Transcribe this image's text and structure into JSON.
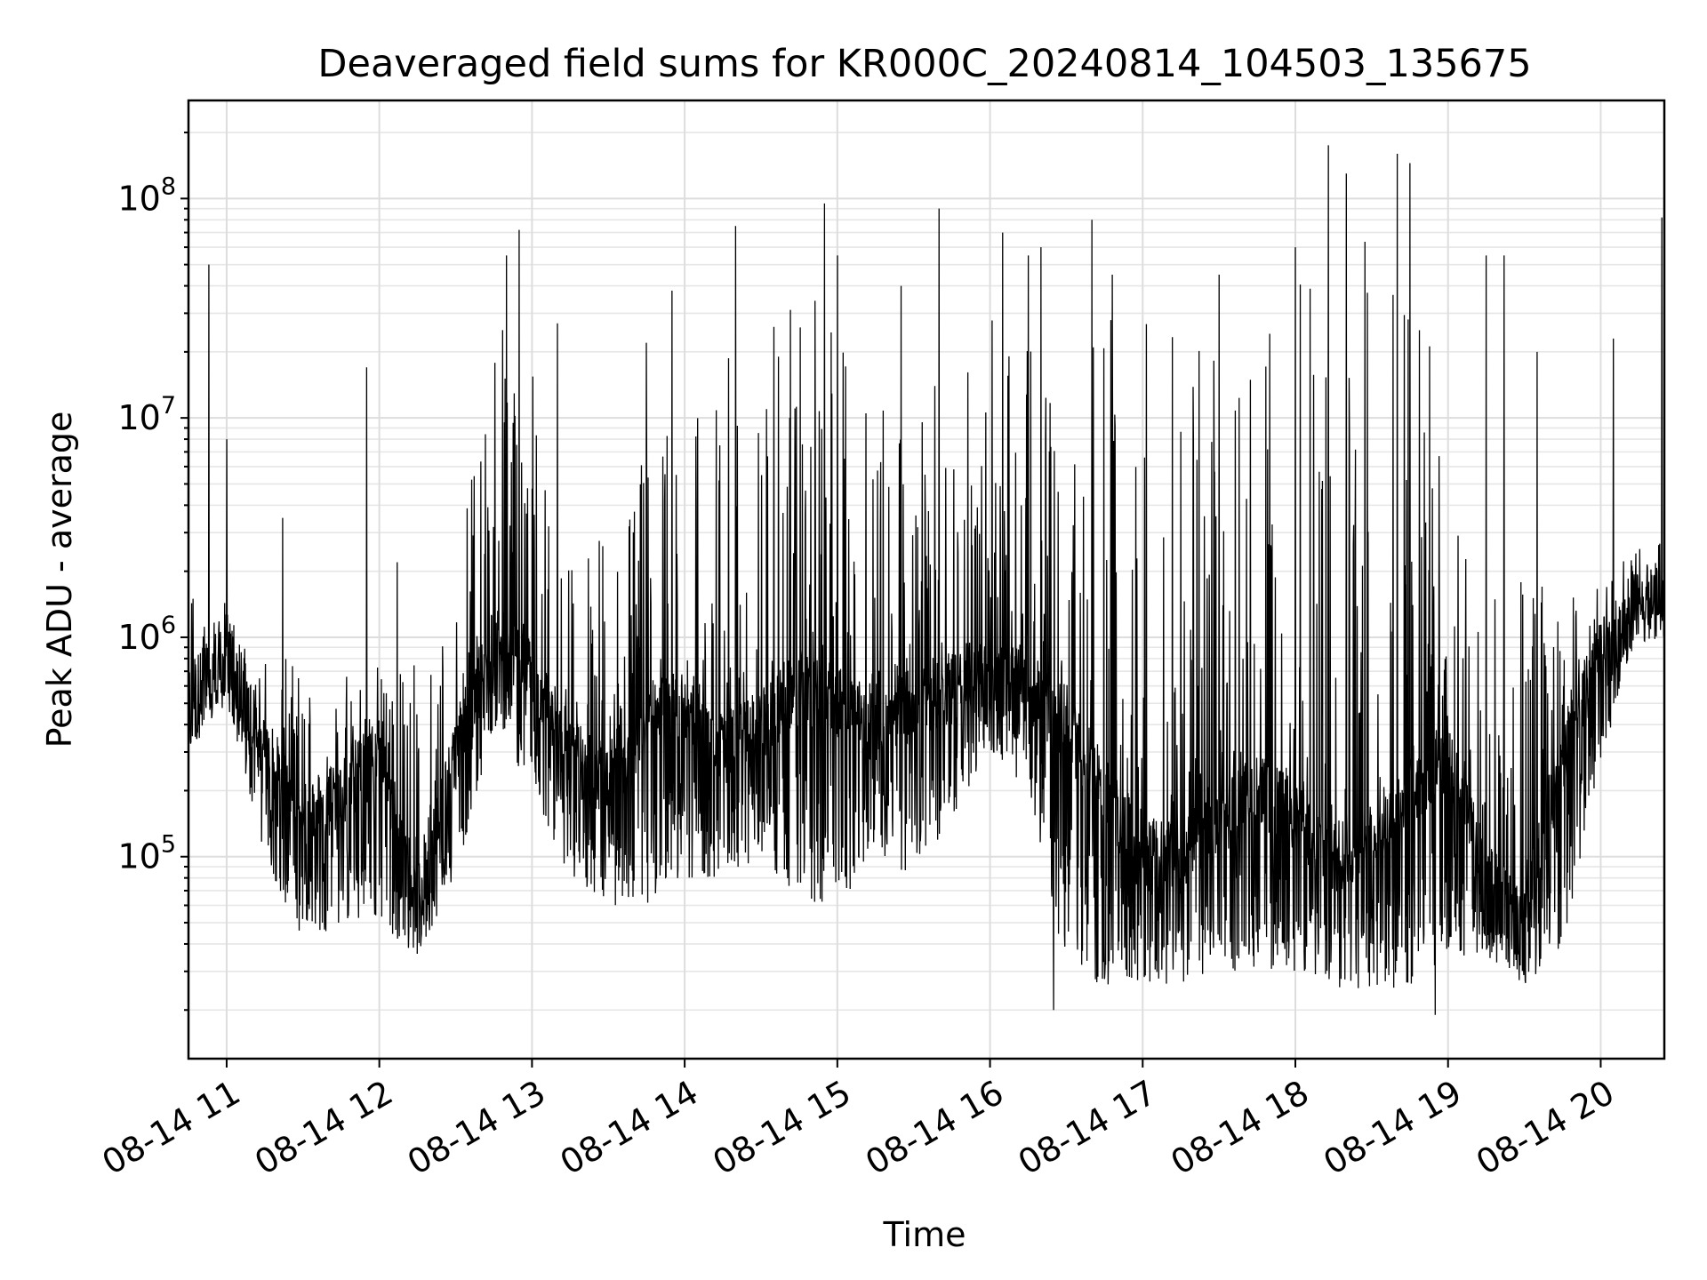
{
  "chart_data": {
    "type": "line",
    "title": "Deaveraged field sums for KR000C_20240814_104503_135675",
    "xlabel": "Time",
    "ylabel": "Peak ADU - average",
    "yscale": "log",
    "xlim": [
      "2024-08-14 10:45",
      "2024-08-14 20:25"
    ],
    "ylim": [
      12000,
      280000000
    ],
    "x_ticks": [
      {
        "value": "2024-08-14 11:00",
        "label": "08-14 11"
      },
      {
        "value": "2024-08-14 12:00",
        "label": "08-14 12"
      },
      {
        "value": "2024-08-14 13:00",
        "label": "08-14 13"
      },
      {
        "value": "2024-08-14 14:00",
        "label": "08-14 14"
      },
      {
        "value": "2024-08-14 15:00",
        "label": "08-14 15"
      },
      {
        "value": "2024-08-14 16:00",
        "label": "08-14 16"
      },
      {
        "value": "2024-08-14 17:00",
        "label": "08-14 17"
      },
      {
        "value": "2024-08-14 18:00",
        "label": "08-14 18"
      },
      {
        "value": "2024-08-14 19:00",
        "label": "08-14 19"
      },
      {
        "value": "2024-08-14 20:00",
        "label": "08-14 20"
      }
    ],
    "y_ticks": [
      {
        "value": 100000,
        "base": "10",
        "exp": "5"
      },
      {
        "value": 1000000,
        "base": "10",
        "exp": "6"
      },
      {
        "value": 10000000,
        "base": "10",
        "exp": "7"
      },
      {
        "value": 100000000,
        "base": "10",
        "exp": "8"
      }
    ],
    "grid": true,
    "series_color": "#000000",
    "series": [
      {
        "x": [
          "2024-08-14 10:45",
          "2024-08-14 11:00",
          "2024-08-14 11:15",
          "2024-08-14 11:30",
          "2024-08-14 11:45",
          "2024-08-14 12:00",
          "2024-08-14 12:15",
          "2024-08-14 12:30",
          "2024-08-14 12:45",
          "2024-08-14 13:00",
          "2024-08-14 13:15",
          "2024-08-14 13:30",
          "2024-08-14 13:45",
          "2024-08-14 14:00",
          "2024-08-14 14:15",
          "2024-08-14 14:30",
          "2024-08-14 14:45",
          "2024-08-14 15:00",
          "2024-08-14 15:15",
          "2024-08-14 15:30",
          "2024-08-14 15:45",
          "2024-08-14 16:00",
          "2024-08-14 16:15",
          "2024-08-14 16:30",
          "2024-08-14 16:45",
          "2024-08-14 17:00",
          "2024-08-14 17:15",
          "2024-08-14 17:30",
          "2024-08-14 17:45",
          "2024-08-14 18:00",
          "2024-08-14 18:15",
          "2024-08-14 18:30",
          "2024-08-14 18:45",
          "2024-08-14 19:00",
          "2024-08-14 19:15",
          "2024-08-14 19:30",
          "2024-08-14 19:45",
          "2024-08-14 20:00",
          "2024-08-14 20:15",
          "2024-08-14 20:25"
        ],
        "base": [
          500000,
          900000,
          300000,
          150000,
          200000,
          300000,
          60000,
          300000,
          1000000,
          700000,
          300000,
          200000,
          400000,
          500000,
          300000,
          400000,
          600000,
          500000,
          400000,
          500000,
          600000,
          700000,
          600000,
          400000,
          200000,
          100000,
          100000,
          150000,
          200000,
          150000,
          100000,
          120000,
          200000,
          300000,
          80000,
          50000,
          300000,
          800000,
          1400000,
          1500000
        ],
        "low": [
          300000,
          500000,
          100000,
          40000,
          50000,
          50000,
          35000,
          80000,
          400000,
          200000,
          80000,
          60000,
          60000,
          80000,
          80000,
          100000,
          60000,
          60000,
          100000,
          80000,
          150000,
          300000,
          200000,
          30000,
          25000,
          25000,
          25000,
          30000,
          30000,
          30000,
          25000,
          25000,
          25000,
          35000,
          35000,
          25000,
          40000,
          250000,
          1200000,
          1200000
        ],
        "high": [
          2000000,
          1500000,
          800000,
          800000,
          700000,
          800000,
          800000,
          1500000,
          40000000,
          20000000,
          2500000,
          3000000,
          8000000,
          15000000,
          20000000,
          15000000,
          40000000,
          30000000,
          15000000,
          12000000,
          18000000,
          30000000,
          25000000,
          50000000,
          50000000,
          35000000,
          25000000,
          20000000,
          20000000,
          40000000,
          80000000,
          90000000,
          35000000,
          15000000,
          1500000,
          2000000,
          1500000,
          2000000,
          2500000,
          3500000
        ],
        "spikes": [
          {
            "x": "2024-08-14 10:53",
            "y": 50000000
          },
          {
            "x": "2024-08-14 11:00",
            "y": 8000000
          },
          {
            "x": "2024-08-14 11:22",
            "y": 3500000
          },
          {
            "x": "2024-08-14 11:55",
            "y": 17000000
          },
          {
            "x": "2024-08-14 12:07",
            "y": 2200000
          },
          {
            "x": "2024-08-14 12:50",
            "y": 55000000
          },
          {
            "x": "2024-08-14 12:55",
            "y": 72000000
          },
          {
            "x": "2024-08-14 13:10",
            "y": 27000000
          },
          {
            "x": "2024-08-14 13:45",
            "y": 22000000
          },
          {
            "x": "2024-08-14 13:55",
            "y": 38000000
          },
          {
            "x": "2024-08-14 14:20",
            "y": 75000000
          },
          {
            "x": "2024-08-14 14:35",
            "y": 26000000
          },
          {
            "x": "2024-08-14 14:55",
            "y": 95000000
          },
          {
            "x": "2024-08-14 15:00",
            "y": 55000000
          },
          {
            "x": "2024-08-14 15:25",
            "y": 40000000
          },
          {
            "x": "2024-08-14 15:40",
            "y": 90000000
          },
          {
            "x": "2024-08-14 16:05",
            "y": 70000000
          },
          {
            "x": "2024-08-14 16:15",
            "y": 55000000
          },
          {
            "x": "2024-08-14 16:20",
            "y": 60000000
          },
          {
            "x": "2024-08-14 16:25",
            "y": 20000
          },
          {
            "x": "2024-08-14 16:40",
            "y": 80000000
          },
          {
            "x": "2024-08-14 16:48",
            "y": 45000000
          },
          {
            "x": "2024-08-14 17:30",
            "y": 45000000
          },
          {
            "x": "2024-08-14 18:00",
            "y": 60000000
          },
          {
            "x": "2024-08-14 18:13",
            "y": 175000000
          },
          {
            "x": "2024-08-14 18:20",
            "y": 130000000
          },
          {
            "x": "2024-08-14 18:40",
            "y": 160000000
          },
          {
            "x": "2024-08-14 18:45",
            "y": 145000000
          },
          {
            "x": "2024-08-14 18:55",
            "y": 19000
          },
          {
            "x": "2024-08-14 19:15",
            "y": 55000000
          },
          {
            "x": "2024-08-14 19:22",
            "y": 55000000
          },
          {
            "x": "2024-08-14 19:35",
            "y": 20000000
          },
          {
            "x": "2024-08-14 20:05",
            "y": 23000000
          },
          {
            "x": "2024-08-14 20:24",
            "y": 82000000
          }
        ]
      }
    ]
  }
}
